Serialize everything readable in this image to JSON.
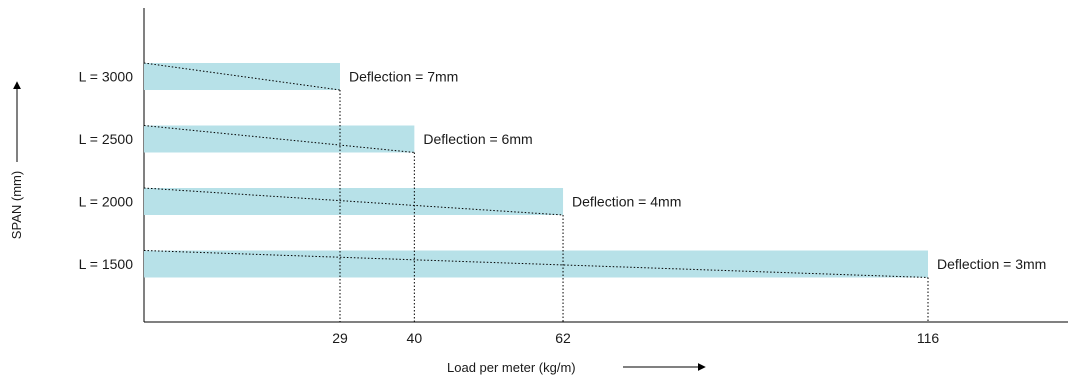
{
  "chart_data": {
    "type": "bar",
    "orientation": "horizontal",
    "categories": [
      "L = 3000",
      "L = 2500",
      "L = 2000",
      "L = 1500"
    ],
    "values": [
      29,
      40,
      62,
      116
    ],
    "annotations": [
      "Deflection =  7mm",
      "Deflection = 6mm",
      "Deflection =  4mm",
      "Deflection =  3mm"
    ],
    "x_ticks": [
      "29",
      "40",
      "62",
      "116"
    ],
    "xlabel": "Load per meter (kg/m)",
    "ylabel": "SPAN (mm)",
    "xlabel_arrow": "right-arrow",
    "ylabel_arrow": "up-arrow",
    "bar_color": "#b7e1e8",
    "grid": false,
    "legend": "none"
  }
}
